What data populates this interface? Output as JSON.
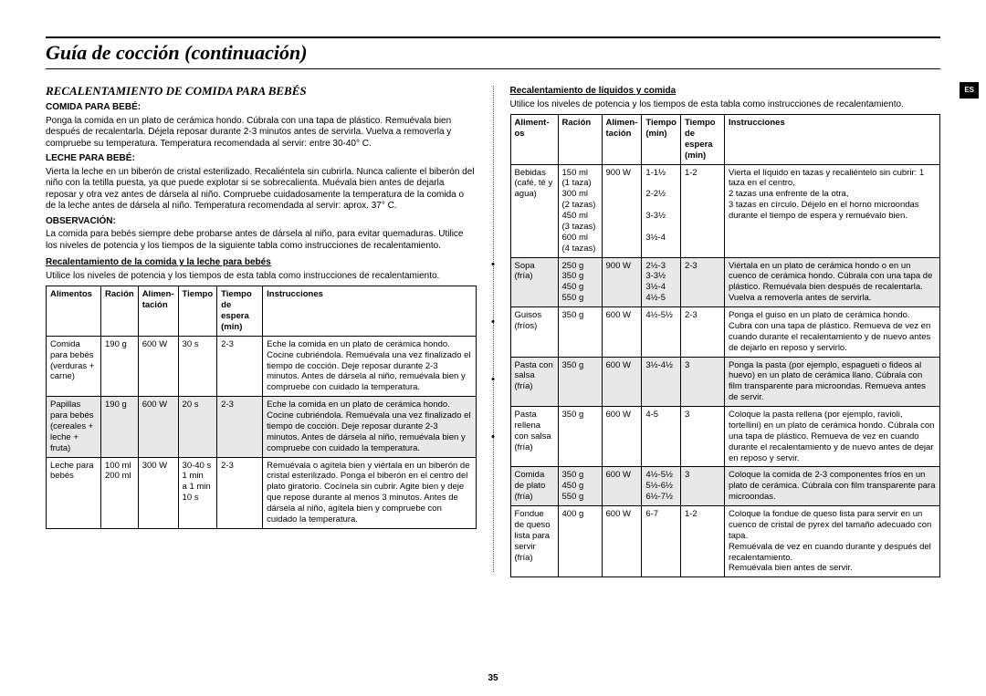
{
  "page": {
    "title": "Guía de cocción (continuación)",
    "lang_tag": "ES",
    "number": "35"
  },
  "left": {
    "heading": "RECALENTAMIENTO DE COMIDA PARA BEBÉS",
    "baby_food_h": "COMIDA PARA BEBÉ:",
    "baby_food_p": "Ponga la comida en un plato de cerámica hondo. Cúbrala con una tapa de plástico. Remuévala bien después de recalentarla. Déjela reposar durante 2-3 minutos antes de servirla. Vuelva a removerla y compruebe su temperatura. Temperatura recomendada al servir: entre 30-40° C.",
    "baby_milk_h": "LECHE PARA BEBÉ:",
    "baby_milk_p": "Vierta la leche en un biberón de cristal esterilizado. Recaliéntela sin cubrirla. Nunca caliente el biberón del niño con la tetilla puesta, ya que puede explotar si se sobrecalienta. Muévala bien antes de dejarla reposar y otra vez antes de dársela al niño. Compruebe cuidadosamente la temperatura de la comida o de la leche antes de dársela al niño. Temperatura recomendada al servir: aprox. 37° C.",
    "obs_h": "OBSERVACIÓN:",
    "obs_p": "La comida para bebés siempre debe probarse antes de dársela al niño, para evitar quemaduras. Utilice los niveles de potencia y los tiempos de la siguiente tabla como instrucciones de recalentamiento.",
    "table1_h": "Recalentamiento de la comida y la leche para bebés",
    "table1_sub": "Utilice los niveles de potencia y los tiempos de esta tabla como instrucciones de recalentamiento.",
    "table1": {
      "cols": [
        "Alimentos",
        "Ración",
        "Alimen-\ntación",
        "Tiempo",
        "Tiempo de\nespera\n(min)",
        "Instrucciones"
      ],
      "rows": [
        {
          "shade": false,
          "c": [
            "Comida\npara bebés\n(verduras +\ncarne)",
            "190 g",
            "600 W",
            "30 s",
            "2-3",
            "Eche la comida en un plato de cerámica hondo. Cocine cubriéndola. Remuévala una vez finalizado el tiempo de cocción. Deje reposar durante 2-3 minutos. Antes de dársela al niño, remuévala bien y compruebe con cuidado la temperatura."
          ]
        },
        {
          "shade": true,
          "c": [
            "Papillas\npara bebés\n(cereales +\nleche +\nfruta)",
            "190 g",
            "600 W",
            "20 s",
            "2-3",
            "Eche la comida en un plato de cerámica hondo. Cocine cubriéndola. Remuévala una vez finalizado el tiempo de cocción. Deje reposar durante 2-3 minutos. Antes de dársela al niño, remuévala bien y compruebe con cuidado la temperatura."
          ]
        },
        {
          "shade": false,
          "c": [
            "Leche para\nbebés",
            "100 ml\n200 ml",
            "300 W",
            "30-40 s\n1 min\na 1 min\n10 s",
            "2-3",
            "Remuévala o agítela bien y viértala en un biberón de cristal esterilizado. Ponga el biberón en el centro del plato giratorio. Cocínela sin cubrir. Agite bien y deje que repose durante al menos 3 minutos. Antes de dársela al niño, agítela bien y compruebe con cuidado la temperatura."
          ]
        }
      ]
    }
  },
  "right": {
    "heading": "Recalentamiento de líquidos y comida",
    "sub": "Utilice los niveles de potencia y los tiempos de esta tabla como instrucciones de recalentamiento.",
    "table2": {
      "cols": [
        "Aliment-\nos",
        "Ración",
        "Alimen-\ntación",
        "Tiempo\n(min)",
        "Tiempo\nde espera\n(min)",
        "Instrucciones"
      ],
      "rows": [
        {
          "shade": false,
          "c": [
            "Bebidas\n(café, té y\nagua)",
            "150 ml\n(1 taza)\n300 ml\n(2 tazas)\n450 ml\n(3 tazas)\n600 ml\n(4 tazas)",
            "900 W",
            "1-1½\n\n2-2½\n\n3-3½\n\n3½-4",
            "1-2",
            "Vierta el líquido en tazas y recaliéntelo sin cubrir: 1 taza en el centro,\n2 tazas una enfrente de la otra,\n3 tazas en círculo. Déjelo en el horno microondas durante el tiempo de espera y remuévalo bien."
          ]
        },
        {
          "shade": true,
          "c": [
            "Sopa\n(fría)",
            "250 g\n350 g\n450 g\n550 g",
            "900 W",
            "2½-3\n3-3½\n3½-4\n4½-5",
            "2-3",
            "Viértala en un plato de cerámica hondo o en un cuenco de cerámica hondo. Cúbrala con una tapa de plástico. Remuévala bien después de recalentarla. Vuelva a removerla antes de servirla."
          ]
        },
        {
          "shade": false,
          "c": [
            "Guisos\n(fríos)",
            "350 g",
            "600 W",
            "4½-5½",
            "2-3",
            "Ponga el guiso en un plato de cerámica hondo. Cubra con una tapa de plástico. Remueva de vez en cuando durante el recalentamiento y de nuevo antes de dejarlo en reposo y servirlo."
          ]
        },
        {
          "shade": true,
          "c": [
            "Pasta con\nsalsa\n(fría)",
            "350 g",
            "600 W",
            "3½-4½",
            "3",
            "Ponga la pasta (por ejemplo, espagueti o fideos al huevo) en un plato de cerámica llano. Cúbrala con film transparente para microondas. Remueva antes de servir."
          ]
        },
        {
          "shade": false,
          "c": [
            "Pasta\nrellena\ncon salsa\n(fría)",
            "350 g",
            "600 W",
            "4-5",
            "3",
            "Coloque la pasta rellena (por ejemplo, ravioli, tortellini) en un plato de cerámica hondo. Cúbrala con una tapa de plástico. Remueva de vez en cuando durante el recalentamiento y de nuevo antes de dejar en reposo y servir."
          ]
        },
        {
          "shade": true,
          "c": [
            "Comida\nde plato\n(fría)",
            "350 g\n450 g\n550 g",
            "600 W",
            "4½-5½\n5½-6½\n6½-7½",
            "3",
            "Coloque la comida de 2-3 componentes fríos en un plato de cerámica. Cúbrala con film transparente para microondas."
          ]
        },
        {
          "shade": false,
          "c": [
            "Fondue\nde queso\nlista para\nservir\n(fría)",
            "400 g",
            "600 W",
            "6-7",
            "1-2",
            "Coloque la fondue de queso lista para servir en un cuenco de cristal de pyrex del tamaño adecuado con tapa.\nRemuévala de vez en cuando durante y después del recalentamiento.\nRemuévala bien antes de servir."
          ]
        }
      ]
    }
  }
}
